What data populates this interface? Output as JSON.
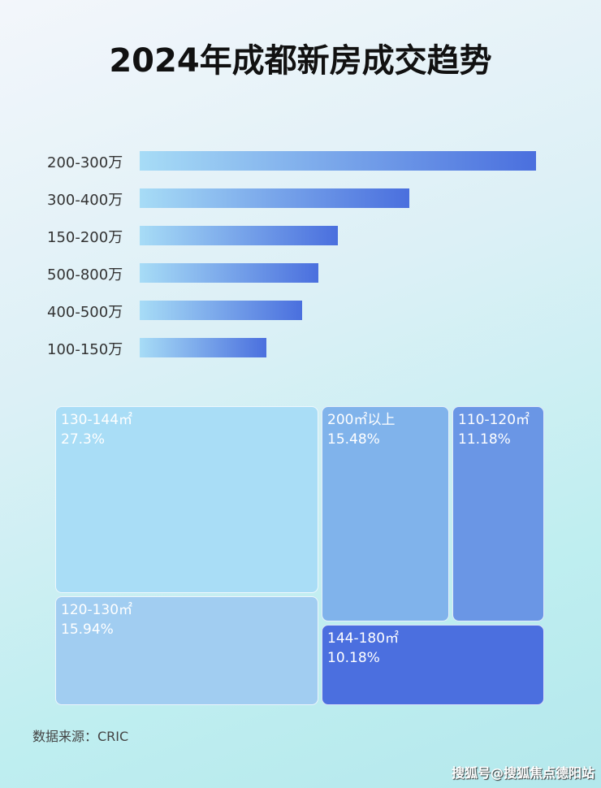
{
  "title": "2024年成都新房成交趋势",
  "chart_data": [
    {
      "type": "bar",
      "orientation": "horizontal",
      "categories": [
        "200-300万",
        "300-400万",
        "150-200万",
        "500-800万",
        "400-500万",
        "100-150万"
      ],
      "values": [
        100,
        68,
        50,
        45,
        41,
        32
      ],
      "value_unit": "relative (no axis shown)",
      "colors": [
        "#a7dcf6",
        "#4a6fde"
      ]
    },
    {
      "type": "treemap",
      "items": [
        {
          "label": "130-144㎡",
          "value": "27.3%",
          "color": "#a9ddf6"
        },
        {
          "label": "120-130㎡",
          "value": "15.94%",
          "color": "#a1cdf1"
        },
        {
          "label": "200㎡以上",
          "value": "15.48%",
          "color": "#80b3eb"
        },
        {
          "label": "110-120㎡",
          "value": "11.18%",
          "color": "#6a96e5"
        },
        {
          "label": "144-180㎡",
          "value": "10.18%",
          "color": "#4b6fdf"
        }
      ]
    }
  ],
  "source": "数据来源：CRIC",
  "watermark": "搜狐号@搜狐焦点德阳站"
}
